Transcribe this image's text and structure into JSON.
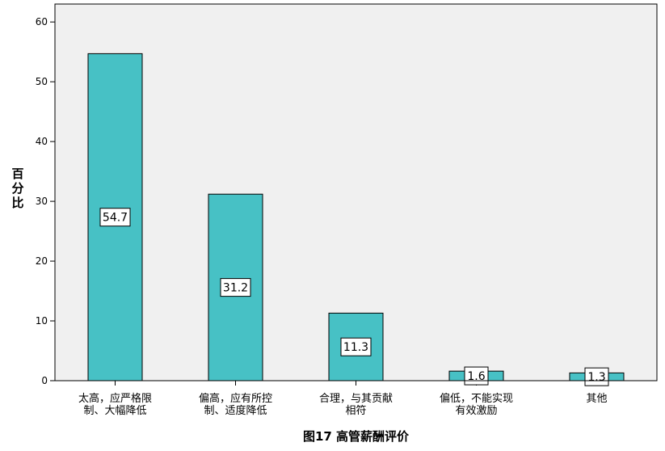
{
  "chart_data": {
    "type": "bar",
    "title": "图17  高管薪酬评价",
    "ylabel": "百分比",
    "xlabel": "",
    "ylim": [
      0,
      63
    ],
    "yticks": [
      0,
      10,
      20,
      30,
      40,
      50,
      60
    ],
    "categories": [
      [
        "太高，应严格限",
        "制、大幅降低"
      ],
      [
        "偏高，应有所控",
        "制、适度降低"
      ],
      [
        "合理，与其贡献",
        "相符"
      ],
      [
        "偏低，不能实现",
        "有效激励"
      ],
      [
        "其他"
      ]
    ],
    "values": [
      54.7,
      31.2,
      11.3,
      1.6,
      1.3
    ],
    "data_labels": [
      "54.7",
      "31.2",
      "11.3",
      "1.6",
      "1.3"
    ],
    "bar_color": "#47c1c5",
    "plot_background": "#f0f0f0",
    "grid": false,
    "legend": "none"
  }
}
